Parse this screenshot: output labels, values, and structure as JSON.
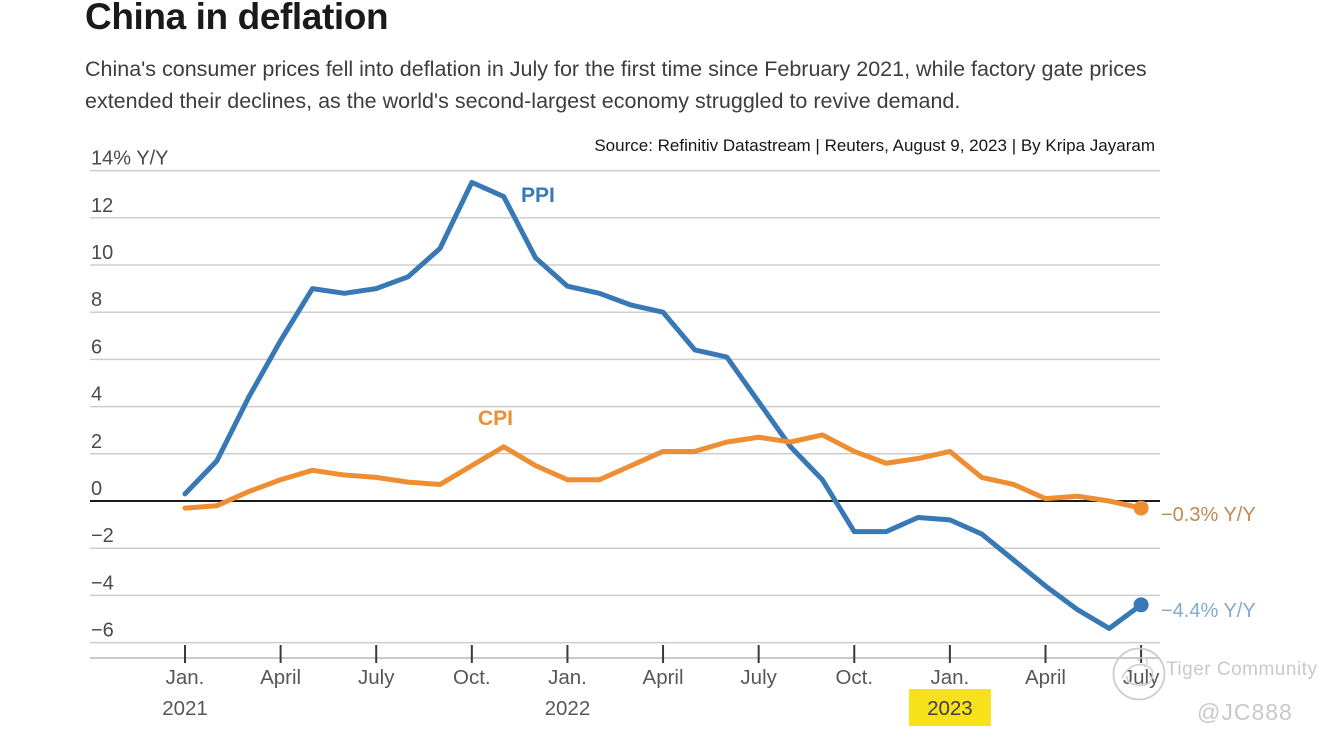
{
  "header": {
    "title": "China in deflation",
    "subtitle": "China's consumer prices fell into deflation in July for the first time since February 2021, while factory gate prices extended their declines, as the world's second-largest economy struggled to revive demand.",
    "source": "Source: Refinitiv Datastream | Reuters, August 9, 2023 | By Kripa Jayaram"
  },
  "watermark": {
    "community": "Tiger Community",
    "handle": "@JC888"
  },
  "chart_data": {
    "type": "line",
    "title": "China in deflation",
    "ylabel": "% Y/Y",
    "ylim": [
      -6,
      14
    ],
    "y_tick_step": 2,
    "grid": true,
    "zero_line": true,
    "x": [
      "Jan 2021",
      "Feb 2021",
      "Mar 2021",
      "Apr 2021",
      "May 2021",
      "Jun 2021",
      "Jul 2021",
      "Aug 2021",
      "Sep 2021",
      "Oct 2021",
      "Nov 2021",
      "Dec 2021",
      "Jan 2022",
      "Feb 2022",
      "Mar 2022",
      "Apr 2022",
      "May 2022",
      "Jun 2022",
      "Jul 2022",
      "Aug 2022",
      "Sep 2022",
      "Oct 2022",
      "Nov 2022",
      "Dec 2022",
      "Jan 2023",
      "Feb 2023",
      "Mar 2023",
      "Apr 2023",
      "May 2023",
      "Jun 2023",
      "Jul 2023"
    ],
    "y_ticks": [
      {
        "v": 14,
        "label": "14% Y/Y"
      },
      {
        "v": 12,
        "label": "12"
      },
      {
        "v": 10,
        "label": "10"
      },
      {
        "v": 8,
        "label": "8"
      },
      {
        "v": 6,
        "label": "6"
      },
      {
        "v": 4,
        "label": "4"
      },
      {
        "v": 2,
        "label": "2"
      },
      {
        "v": 0,
        "label": "0"
      },
      {
        "v": -2,
        "label": "−2"
      },
      {
        "v": -4,
        "label": "−4"
      },
      {
        "v": -6,
        "label": "−6"
      }
    ],
    "x_ticks": [
      {
        "i": 0,
        "label": "Jan.",
        "year": "2021"
      },
      {
        "i": 3,
        "label": "April"
      },
      {
        "i": 6,
        "label": "July"
      },
      {
        "i": 9,
        "label": "Oct."
      },
      {
        "i": 12,
        "label": "Jan.",
        "year": "2022"
      },
      {
        "i": 15,
        "label": "April"
      },
      {
        "i": 18,
        "label": "July"
      },
      {
        "i": 21,
        "label": "Oct."
      },
      {
        "i": 24,
        "label": "Jan.",
        "year": "2023",
        "highlight": true
      },
      {
        "i": 27,
        "label": "April"
      },
      {
        "i": 30,
        "label": "July"
      }
    ],
    "highlight_color": "#f6e11b",
    "highlight_text_color": "#3f3f3f",
    "series": [
      {
        "name": "PPI",
        "color": "#3879b5",
        "end_label": "−4.4% Y/Y",
        "end_label_color": "#84aacb",
        "values": [
          0.3,
          1.7,
          4.4,
          6.8,
          9.0,
          8.8,
          9.0,
          9.5,
          10.7,
          13.5,
          12.9,
          10.3,
          9.1,
          8.8,
          8.3,
          8.0,
          6.4,
          6.1,
          4.2,
          2.3,
          0.9,
          -1.3,
          -1.3,
          -0.7,
          -0.8,
          -1.4,
          -2.5,
          -3.6,
          -4.6,
          -5.4,
          -4.4
        ]
      },
      {
        "name": "CPI",
        "color": "#ee8d32",
        "end_label": "−0.3% Y/Y",
        "end_label_color": "#c08a55",
        "values": [
          -0.3,
          -0.2,
          0.4,
          0.9,
          1.3,
          1.1,
          1.0,
          0.8,
          0.7,
          1.5,
          2.3,
          1.5,
          0.9,
          0.9,
          1.5,
          2.1,
          2.1,
          2.5,
          2.7,
          2.5,
          2.8,
          2.1,
          1.6,
          1.8,
          2.1,
          1.0,
          0.7,
          0.1,
          0.2,
          0.0,
          -0.3
        ]
      }
    ]
  }
}
